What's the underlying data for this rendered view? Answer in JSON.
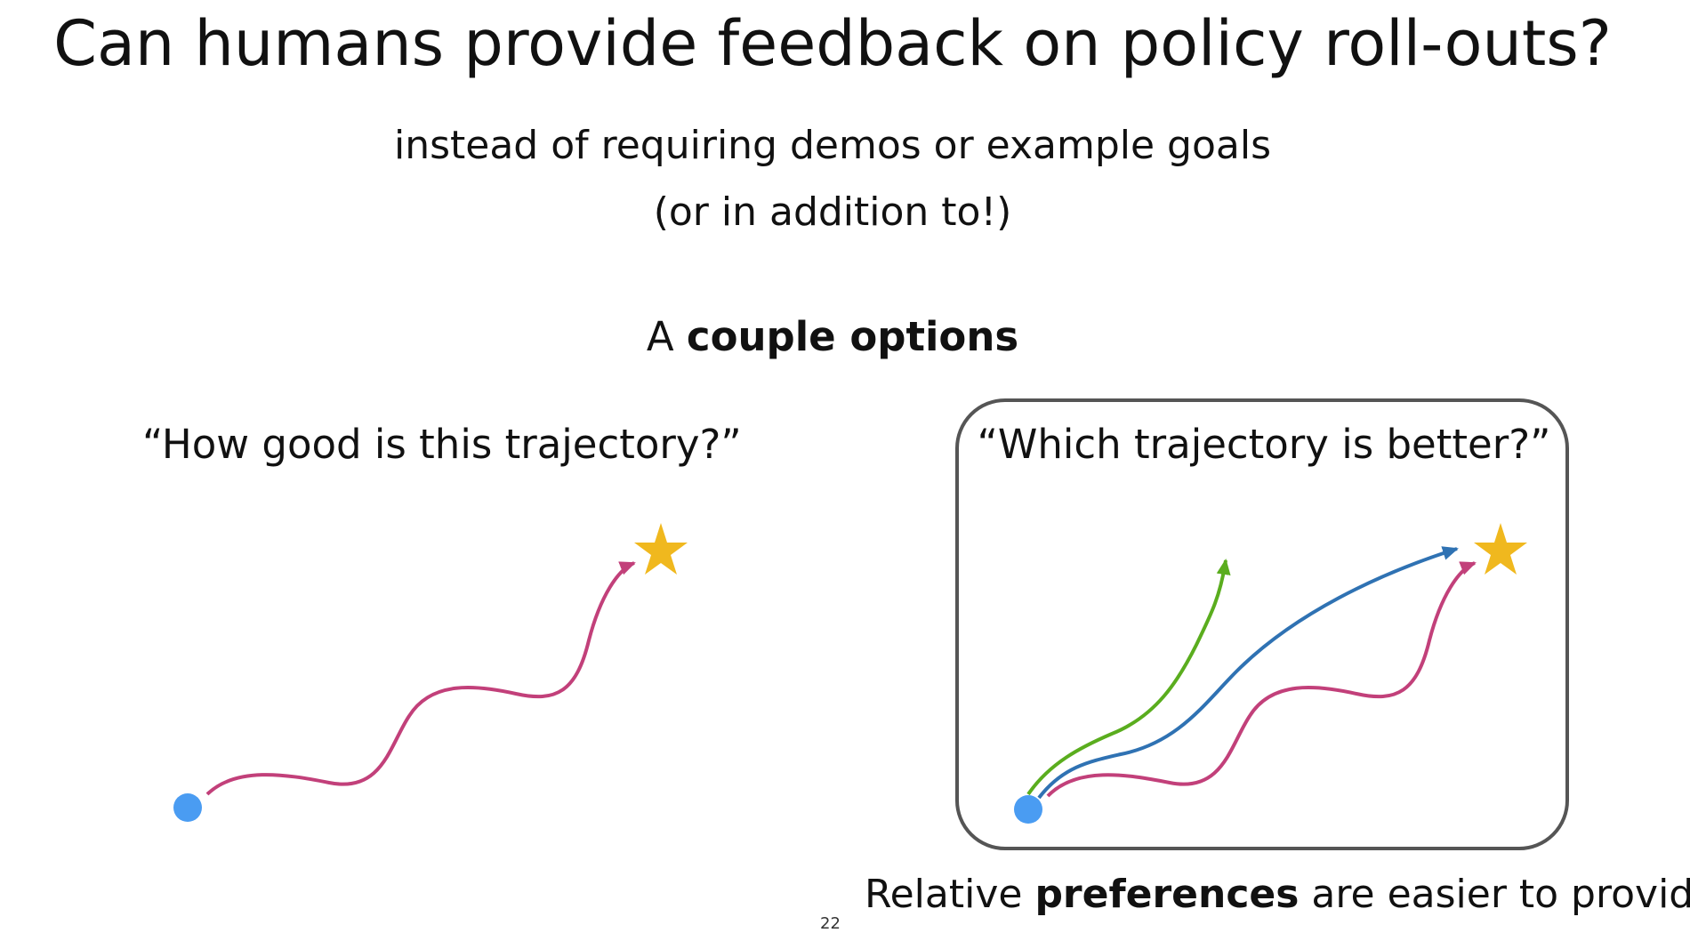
{
  "slide": {
    "title": "Can humans provide feedback on policy roll-outs?",
    "subtitle_line1": "instead of requiring demos or example goals",
    "subtitle_line2": "(or in addition to!)",
    "options_prefix": "A ",
    "options_bold": "couple options",
    "left_question": "“How good is this trajectory?”",
    "right_question": "“Which trajectory is better?”",
    "bottom_prefix": "Relative ",
    "bottom_bold": "preferences",
    "bottom_suffix": " are easier to provide!",
    "page_number": "22"
  },
  "colors": {
    "start_dot": "#4a9cf2",
    "goal_star": "#f0b81e",
    "trajectory_pink": "#c2407a",
    "trajectory_blue": "#2f72b3",
    "trajectory_green": "#5aad1e",
    "panel_border": "#555555"
  },
  "icons": {
    "start": "circle-dot-icon",
    "goal": "star-icon"
  }
}
